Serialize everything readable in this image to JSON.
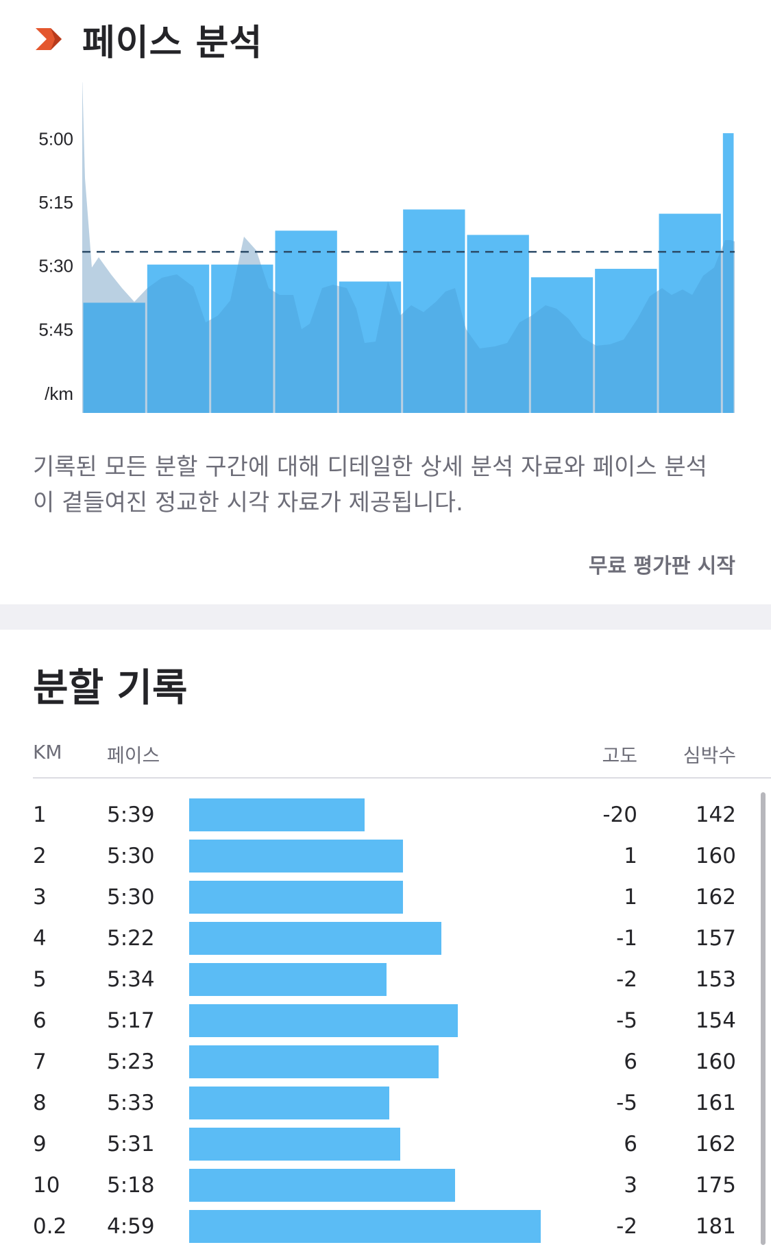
{
  "pace_analysis": {
    "title": "페이스 분석",
    "description": "기록된 모든 분할 구간에 대해 디테일한 상세 분석 자료와 페이스 분석이 곁들여진 정교한 시각 자료가 제공됩니다.",
    "trial_link": "무료 평가판 시작",
    "icon": "chevron-right-icon",
    "accent_color": "#e4572e"
  },
  "chart_data": {
    "type": "bar",
    "title": "",
    "xlabel": "",
    "ylabel": "/km",
    "ytick_labels": [
      "5:00",
      "5:15",
      "5:30",
      "5:45",
      "/km"
    ],
    "y_reversed": true,
    "ylim": [
      "4:47",
      "6:05"
    ],
    "average_line": "5:27",
    "average_line_style": "dashed",
    "categories": [
      "1",
      "2",
      "3",
      "4",
      "5",
      "6",
      "7",
      "8",
      "9",
      "10",
      "0.2"
    ],
    "values": [
      "5:39",
      "5:30",
      "5:30",
      "5:22",
      "5:34",
      "5:17",
      "5:23",
      "5:33",
      "5:31",
      "5:18",
      "4:59"
    ],
    "bar_color": "#5bbcf5",
    "background_series_color": "#e9e9ee",
    "grid": false
  },
  "splits": {
    "title": "분할 기록",
    "columns": {
      "km": "KM",
      "pace": "페이스",
      "elevation": "고도",
      "heart_rate": "심박수"
    },
    "bar_color": "#5bbcf5",
    "rows": [
      {
        "km": "1",
        "pace": "5:39",
        "elevation": "-20",
        "heart_rate": "142",
        "bar_fraction": 0.32
      },
      {
        "km": "2",
        "pace": "5:30",
        "elevation": "1",
        "heart_rate": "160",
        "bar_fraction": 0.39
      },
      {
        "km": "3",
        "pace": "5:30",
        "elevation": "1",
        "heart_rate": "162",
        "bar_fraction": 0.39
      },
      {
        "km": "4",
        "pace": "5:22",
        "elevation": "-1",
        "heart_rate": "157",
        "bar_fraction": 0.46
      },
      {
        "km": "5",
        "pace": "5:34",
        "elevation": "-2",
        "heart_rate": "153",
        "bar_fraction": 0.36
      },
      {
        "km": "6",
        "pace": "5:17",
        "elevation": "-5",
        "heart_rate": "154",
        "bar_fraction": 0.49
      },
      {
        "km": "7",
        "pace": "5:23",
        "elevation": "6",
        "heart_rate": "160",
        "bar_fraction": 0.455
      },
      {
        "km": "8",
        "pace": "5:33",
        "elevation": "-5",
        "heart_rate": "161",
        "bar_fraction": 0.365
      },
      {
        "km": "9",
        "pace": "5:31",
        "elevation": "6",
        "heart_rate": "162",
        "bar_fraction": 0.385
      },
      {
        "km": "10",
        "pace": "5:18",
        "elevation": "3",
        "heart_rate": "175",
        "bar_fraction": 0.485
      },
      {
        "km": "0.2",
        "pace": "4:59",
        "elevation": "-2",
        "heart_rate": "181",
        "bar_fraction": 0.64
      }
    ]
  }
}
